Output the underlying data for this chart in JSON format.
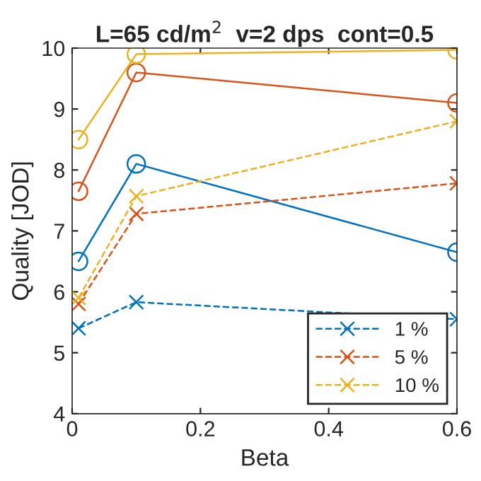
{
  "chart_data": {
    "type": "line",
    "title": "L=65 cd/m$^{2}$  v=2 dps  cont=0.5",
    "xlabel": "Beta",
    "ylabel": "Quality [JOD]",
    "x": [
      0.01,
      0.1,
      0.6
    ],
    "series": [
      {
        "color": "#0072bd",
        "values": [
          6.5,
          8.1,
          6.65
        ],
        "marker": "circle",
        "line_style": "solid"
      },
      {
        "color": "#d95319",
        "values": [
          7.65,
          9.6,
          9.1
        ],
        "marker": "circle",
        "line_style": "solid"
      },
      {
        "color": "#edb120",
        "values": [
          8.5,
          9.9,
          9.97
        ],
        "marker": "circle",
        "line_style": "solid"
      },
      {
        "name": "1 %",
        "color": "#0072bd",
        "values": [
          5.4,
          5.83,
          5.55
        ],
        "marker": "cross",
        "line_style": "dashed"
      },
      {
        "name": "5 %",
        "color": "#d95319",
        "values": [
          5.8,
          7.28,
          7.78
        ],
        "marker": "cross",
        "line_style": "dashed"
      },
      {
        "name": "10 %",
        "color": "#edb120",
        "values": [
          5.9,
          7.57,
          8.8
        ],
        "marker": "cross",
        "line_style": "dashed"
      }
    ],
    "xlim": [
      0,
      0.6
    ],
    "xticks": [
      0,
      0.2,
      0.4,
      0.6
    ],
    "ylim": [
      4,
      10
    ],
    "yticks": [
      4,
      5,
      6,
      7,
      8,
      9,
      10
    ],
    "grid": false,
    "legend": "bottom right"
  }
}
